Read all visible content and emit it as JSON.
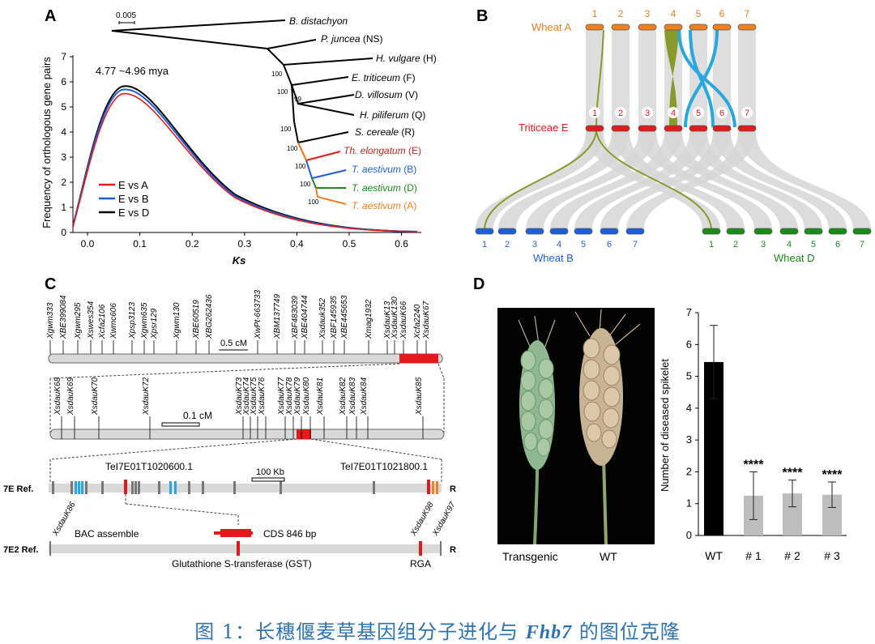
{
  "panels": {
    "A": {
      "label": "A",
      "scale_label": "0.005",
      "peak_label": "4.77 ~4.96 mya",
      "ylabel": "Frequency of orthologous gene pairs",
      "xlabel": "Ks",
      "yticks": [
        "0",
        "1",
        "2",
        "3",
        "4",
        "5",
        "6",
        "7"
      ],
      "xticks": [
        "0.0",
        "0.1",
        "0.2",
        "0.3",
        "0.4",
        "0.5",
        "0.6"
      ],
      "legend": [
        {
          "label": "E vs A",
          "color": "#e31a1c"
        },
        {
          "label": "E vs B",
          "color": "#1f5fd6"
        },
        {
          "label": "E vs D",
          "color": "#000000"
        }
      ],
      "taxa": [
        {
          "name": "B. distachyon",
          "suffix": "",
          "color": "#000000"
        },
        {
          "name": "P. juncea",
          "suffix": " (NS)",
          "color": "#000000"
        },
        {
          "name": "H. vulgare",
          "suffix": " (H)",
          "color": "#000000"
        },
        {
          "name": "E. triticeum",
          "suffix": " (F)",
          "color": "#000000"
        },
        {
          "name": "D. villosum",
          "suffix": " (V)",
          "color": "#000000"
        },
        {
          "name": "H. piliferum",
          "suffix": " (Q)",
          "color": "#000000"
        },
        {
          "name": "S. cereale",
          "suffix": " (R)",
          "color": "#000000"
        },
        {
          "name": "Th. elongatum",
          "suffix": " (E)",
          "color": "#e31a1c"
        },
        {
          "name": "T. aestivum",
          "suffix": " (B)",
          "color": "#1f5fd6"
        },
        {
          "name": "T. aestivum",
          "suffix": " (D)",
          "color": "#1a8a1a"
        },
        {
          "name": "T. aestivum",
          "suffix": " (A)",
          "color": "#f07f1e"
        }
      ],
      "bootstraps": [
        "100",
        "100",
        "99",
        "100",
        "100",
        "100",
        "100",
        "100"
      ]
    },
    "B": {
      "label": "B",
      "wheatA": "Wheat A",
      "triticeaeE": "Triticeae E",
      "wheatB": "Wheat B",
      "wheatD": "Wheat D",
      "chromosomes": [
        "1",
        "2",
        "3",
        "4",
        "5",
        "6",
        "7"
      ],
      "colors": {
        "A": "#f07f1e",
        "E": "#e31a1c",
        "B": "#1f5fd6",
        "D": "#1a8a1a",
        "link": "#8a9a2a",
        "highlight": "#29a8e0"
      }
    },
    "C": {
      "label": "C",
      "row1_markers": [
        "Xgwm333",
        "XBE399084",
        "Xgwm295",
        "Xswes354",
        "Xcfa2106",
        "Xwmc606",
        "Xpsp3123",
        "Xgwm635",
        "Xpsr129",
        "Xgwm130",
        "XBE60519",
        "XBG262436",
        "XwPt-663733",
        "XBM137749",
        "XBF483039",
        "XBE404744",
        "Xsdauk352",
        "XBF145935",
        "XBE445653",
        "Xmag1932",
        "XsdauK13",
        "XsdauK130",
        "XsdauK66",
        "Xcfa2240",
        "XsdauK67"
      ],
      "row1_scale": "0.5 cM",
      "row2_markers": [
        "XsdauK68",
        "XsdauK69",
        "XsdauK70",
        "XsdauK72",
        "XsdauK73",
        "XsdauK74",
        "XsdauK75",
        "XsdauK76",
        "XsdauK77",
        "XsdauK78",
        "XsdauK79",
        "XsdauK80",
        "XsdauK81",
        "XsdauK82",
        "XsdauK83",
        "XsdauK84",
        "XsdauK85"
      ],
      "row2_scale": "0.1 cM",
      "ref7E_label": "7E  Ref.",
      "ref7E_left_gene": "TeI7E01T1020600.1",
      "ref7E_right_gene": "TeI7E01T1021800.1",
      "ref7E_scale": "100 Kb",
      "r_label": "R",
      "ref7E2_label": "7E2  Ref.",
      "ref7E2_markers": [
        "XsdauK86",
        "XsdauK98",
        "XsdauK97"
      ],
      "bac_label": "BAC assemble",
      "cds_label": "CDS 846 bp",
      "gst_label": "Glutathione S-transferase (GST)",
      "rga_label": "RGA"
    },
    "D": {
      "label": "D",
      "photo_left": "Transgenic",
      "photo_right": "WT",
      "chart_data": {
        "type": "bar",
        "categories": [
          "WT",
          "# 1",
          "# 2",
          "# 3"
        ],
        "values": [
          5.45,
          1.25,
          1.32,
          1.28
        ],
        "errors": [
          1.15,
          0.75,
          0.42,
          0.4
        ],
        "significance": [
          "",
          "****",
          "****",
          "****"
        ],
        "colors": [
          "#000000",
          "#bdbdbd",
          "#bdbdbd",
          "#bdbdbd"
        ],
        "ylabel": "Number of diseased spikelet",
        "ylim": [
          0,
          7
        ],
        "yticks": [
          "0",
          "1",
          "2",
          "3",
          "4",
          "5",
          "6",
          "7"
        ]
      }
    }
  },
  "caption": {
    "prefix": "图 1：长穗偃麦草基因组分子进化与 ",
    "gene": "Fhb7",
    "suffix": " 的图位克隆"
  }
}
